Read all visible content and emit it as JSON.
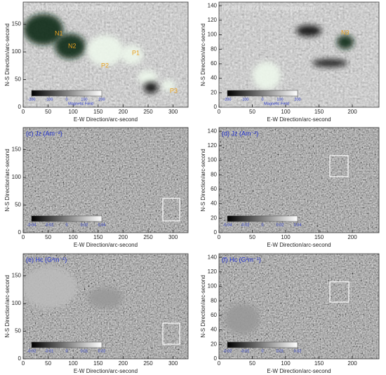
{
  "panels": [
    {
      "title": "(a) AR 13373 Vector magntogram",
      "xlabel": "E-W Direction/arc-second",
      "ylabel": "N-S Direction/arc-second",
      "xlim": [
        0,
        330
      ],
      "ylim": [
        0,
        190
      ],
      "xticks": [
        0,
        50,
        100,
        150,
        200,
        250,
        300
      ],
      "yticks": [
        0,
        50,
        100,
        150
      ],
      "colorbar": {
        "ticks": [
          -200,
          -100,
          0,
          100,
          200
        ],
        "label": "Magnetic Field"
      },
      "annotations": [
        "N1",
        "N2",
        "P2",
        "P1",
        "P3"
      ]
    },
    {
      "title": "(b) AR 13374 Vector magntogram",
      "xlabel": "E-W Direction/arc-second",
      "ylabel": "N-S Direction/arc-second",
      "xlim": [
        0,
        240
      ],
      "ylim": [
        0,
        145
      ],
      "xticks": [
        0,
        50,
        100,
        150,
        200
      ],
      "yticks": [
        0,
        20,
        40,
        60,
        80,
        100,
        120,
        140
      ],
      "colorbar": {
        "ticks": [
          -200,
          -100,
          0,
          100,
          200
        ],
        "label": "Magnetic Field"
      },
      "annotations": [
        "N3"
      ]
    },
    {
      "title": "(c) Jz (Am⁻²)",
      "xlabel": "E-W Direction/arc-second",
      "ylabel": "N-S Direction/arc-second",
      "xlim": [
        0,
        330
      ],
      "ylim": [
        0,
        190
      ],
      "xticks": [
        0,
        50,
        100,
        150,
        200,
        250,
        300
      ],
      "yticks": [
        0,
        50,
        100,
        150
      ],
      "colorbar": {
        "ticks": [
          -0.04,
          -0.02,
          0,
          0.02,
          0.04
        ]
      }
    },
    {
      "title": "(d) Jz (Am⁻²)",
      "xlabel": "E-W Direction/arc-second",
      "ylabel": "N-S Direction/arc-second",
      "xlim": [
        0,
        240
      ],
      "ylim": [
        0,
        145
      ],
      "xticks": [
        0,
        50,
        100,
        150,
        200
      ],
      "yticks": [
        0,
        20,
        40,
        60,
        80,
        100,
        120,
        140
      ],
      "colorbar": {
        "ticks": [
          -0.04,
          -0.02,
          0,
          0.02,
          0.04
        ]
      }
    },
    {
      "title": "(e) Hc (G²m⁻¹)",
      "xlabel": "E-W Direction/arc-second",
      "ylabel": "N-S Direction/arc-second",
      "xlim": [
        0,
        330
      ],
      "ylim": [
        0,
        190
      ],
      "xticks": [
        0,
        50,
        100,
        150,
        200,
        250,
        300
      ],
      "yticks": [
        0,
        50,
        100,
        150
      ],
      "colorbar": {
        "ticks": [
          -0.02,
          -0.01,
          0,
          0.01,
          0.02
        ]
      }
    },
    {
      "title": "(f) Hc (G²m⁻¹)",
      "xlabel": "E-W Direction/arc-second",
      "ylabel": "N-S Direction/arc-second",
      "xlim": [
        0,
        240
      ],
      "ylim": [
        0,
        145
      ],
      "xticks": [
        0,
        50,
        100,
        150,
        200
      ],
      "yticks": [
        0,
        20,
        40,
        60,
        80,
        100,
        120,
        140
      ],
      "colorbar": {
        "ticks": [
          -0.02,
          -0.01,
          0,
          0.01,
          0.02
        ]
      }
    }
  ]
}
